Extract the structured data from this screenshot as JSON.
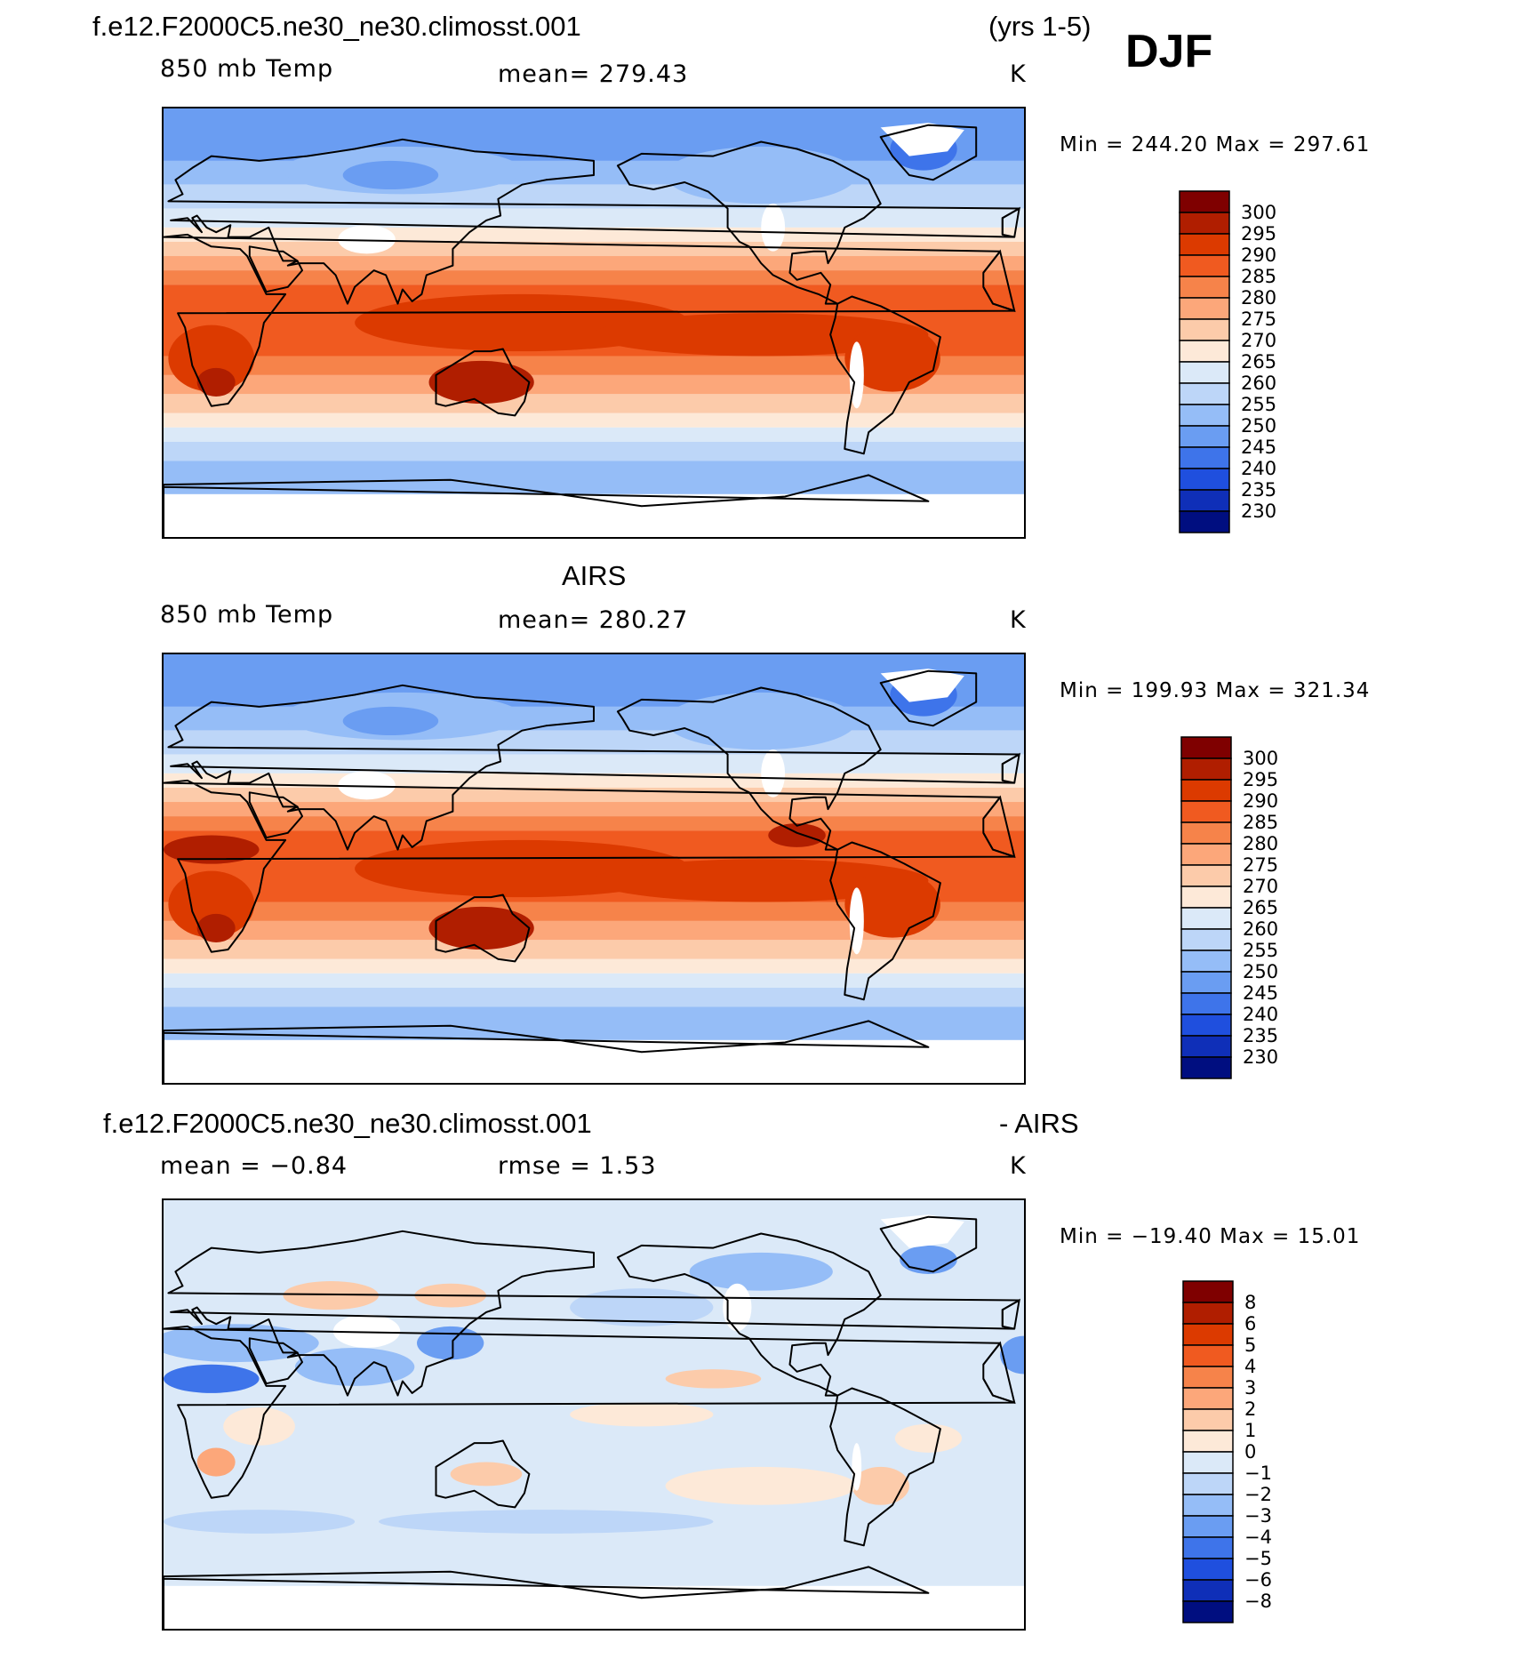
{
  "header": {
    "case_name": "f.e12.F2000C5.ne30_ne30.climosst.001",
    "years": "(yrs 1-5)",
    "season": "DJF"
  },
  "panels": [
    {
      "title": "",
      "left": "850 mb Temp",
      "center": "mean=  279.43",
      "right": "K",
      "minmax": "Min  =  244.20  Max  =  297.61",
      "map_kind": "model-temperature",
      "colorbar": {
        "levels": [
          "300",
          "295",
          "290",
          "285",
          "280",
          "275",
          "270",
          "265",
          "260",
          "255",
          "250",
          "245",
          "240",
          "235",
          "230"
        ],
        "colors": [
          "#7f0000",
          "#b01e00",
          "#dc3a00",
          "#f05a20",
          "#f6834a",
          "#fca77a",
          "#fccbaa",
          "#fde9d8",
          "#dbe9f8",
          "#bdd6f8",
          "#95bdf7",
          "#6a9df2",
          "#3e74ea",
          "#1f4fde",
          "#0f2fb8",
          "#000e80"
        ]
      }
    },
    {
      "title": "AIRS",
      "left": "850 mb Temp",
      "center": "mean=  280.27",
      "right": "K",
      "minmax": "Min  =  199.93  Max  =  321.34",
      "map_kind": "obs-temperature",
      "colorbar": {
        "levels": [
          "300",
          "295",
          "290",
          "285",
          "280",
          "275",
          "270",
          "265",
          "260",
          "255",
          "250",
          "245",
          "240",
          "235",
          "230"
        ],
        "colors": [
          "#7f0000",
          "#b01e00",
          "#dc3a00",
          "#f05a20",
          "#f6834a",
          "#fca77a",
          "#fccbaa",
          "#fde9d8",
          "#dbe9f8",
          "#bdd6f8",
          "#95bdf7",
          "#6a9df2",
          "#3e74ea",
          "#1f4fde",
          "#0f2fb8",
          "#000e80"
        ]
      }
    },
    {
      "title_left": "f.e12.F2000C5.ne30_ne30.climosst.001",
      "title_right": "- AIRS",
      "left": "mean  =   −0.84",
      "center": "rmse  =     1.53",
      "right": "K",
      "minmax": "Min  =  −19.40  Max  =    15.01",
      "map_kind": "difference",
      "colorbar": {
        "levels": [
          "8",
          "6",
          "5",
          "4",
          "3",
          "2",
          "1",
          "0",
          "−1",
          "−2",
          "−3",
          "−4",
          "−5",
          "−6",
          "−8"
        ],
        "colors": [
          "#7f0000",
          "#b01e00",
          "#dc3a00",
          "#f05a20",
          "#f6834a",
          "#fca77a",
          "#fccbaa",
          "#fde9d8",
          "#dbe9f8",
          "#bdd6f8",
          "#95bdf7",
          "#6a9df2",
          "#3e74ea",
          "#1f4fde",
          "#0f2fb8",
          "#000e80"
        ]
      }
    }
  ]
}
